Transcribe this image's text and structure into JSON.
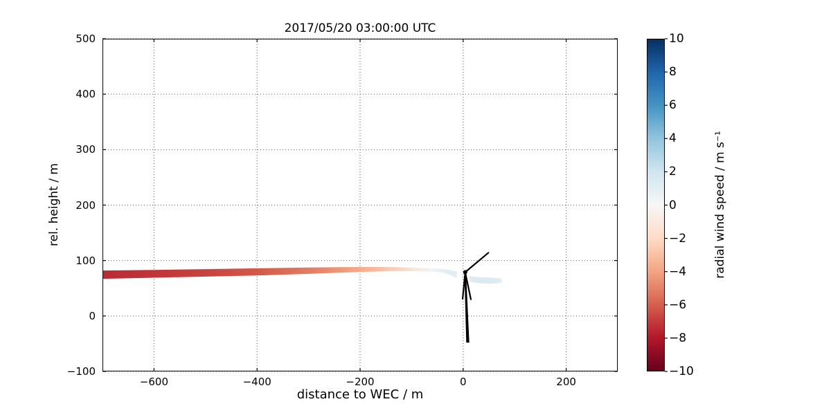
{
  "chart_data": {
    "type": "scatter",
    "title": "2017/05/20 03:00:00 UTC",
    "xlabel": "distance to WEC / m",
    "ylabel": "rel. height / m",
    "xlim": [
      -700,
      300
    ],
    "ylim": [
      -100,
      500
    ],
    "xticks": [
      -600,
      -400,
      -200,
      0,
      200
    ],
    "xtick_labels": [
      "−600",
      "−400",
      "−200",
      "0",
      "200"
    ],
    "yticks": [
      -100,
      0,
      100,
      200,
      300,
      400,
      500
    ],
    "ytick_labels": [
      "−100",
      "0",
      "100",
      "200",
      "300",
      "400",
      "500"
    ],
    "grid": true,
    "background": "#ffffff",
    "colorbar": {
      "label": "radial wind speed / m s⁻¹",
      "range": [
        -10,
        10
      ],
      "ticks": [
        10,
        8,
        6,
        4,
        2,
        0,
        -2,
        -4,
        -6,
        -8,
        -10
      ],
      "tick_labels": [
        "10",
        "8",
        "6",
        "4",
        "2",
        "0",
        "−2",
        "−4",
        "−6",
        "−8",
        "−10"
      ],
      "colormap": "RdBu"
    },
    "series": [
      {
        "name": "upstream-lidar-beam",
        "points": [
          {
            "x": -700,
            "y_top": 82.0,
            "y_bot": 67.0,
            "v": -7.5
          },
          {
            "x": -600,
            "y_top": 83.0,
            "y_bot": 69.0,
            "v": -7.2
          },
          {
            "x": -500,
            "y_top": 84.5,
            "y_bot": 71.0,
            "v": -6.8
          },
          {
            "x": -400,
            "y_top": 86.0,
            "y_bot": 73.0,
            "v": -6.2
          },
          {
            "x": -300,
            "y_top": 87.5,
            "y_bot": 76.0,
            "v": -5.2
          },
          {
            "x": -240,
            "y_top": 88.0,
            "y_bot": 78.0,
            "v": -4.4
          },
          {
            "x": -180,
            "y_top": 88.5,
            "y_bot": 80.0,
            "v": -3.4
          },
          {
            "x": -130,
            "y_top": 88.0,
            "y_bot": 81.0,
            "v": -2.4
          },
          {
            "x": -90,
            "y_top": 87.0,
            "y_bot": 81.0,
            "v": -1.2
          },
          {
            "x": -60,
            "y_top": 86.0,
            "y_bot": 80.0,
            "v": 0.3
          },
          {
            "x": -40,
            "y_top": 85.0,
            "y_bot": 78.0,
            "v": 1.0
          },
          {
            "x": -25,
            "y_top": 83.0,
            "y_bot": 74.0,
            "v": 1.2
          },
          {
            "x": -12,
            "y_top": 80.0,
            "y_bot": 68.0,
            "v": 1.0
          }
        ]
      },
      {
        "name": "downstream-lidar-beam",
        "points": [
          {
            "x": 12,
            "y_top": 72.0,
            "y_bot": 62.0,
            "v": 1.3
          },
          {
            "x": 30,
            "y_top": 70.0,
            "y_bot": 59.0,
            "v": 1.5
          },
          {
            "x": 55,
            "y_top": 69.0,
            "y_bot": 58.0,
            "v": 1.4
          },
          {
            "x": 75,
            "y_top": 68.0,
            "y_bot": 60.0,
            "v": 1.2
          }
        ]
      }
    ],
    "turbine": {
      "name": "wind-energy-converter",
      "hub": [
        4,
        79
      ],
      "tower_base": [
        9,
        -48
      ],
      "blades": [
        [
          49,
          114
        ],
        [
          15,
          30
        ],
        [
          -1,
          31
        ]
      ]
    }
  }
}
